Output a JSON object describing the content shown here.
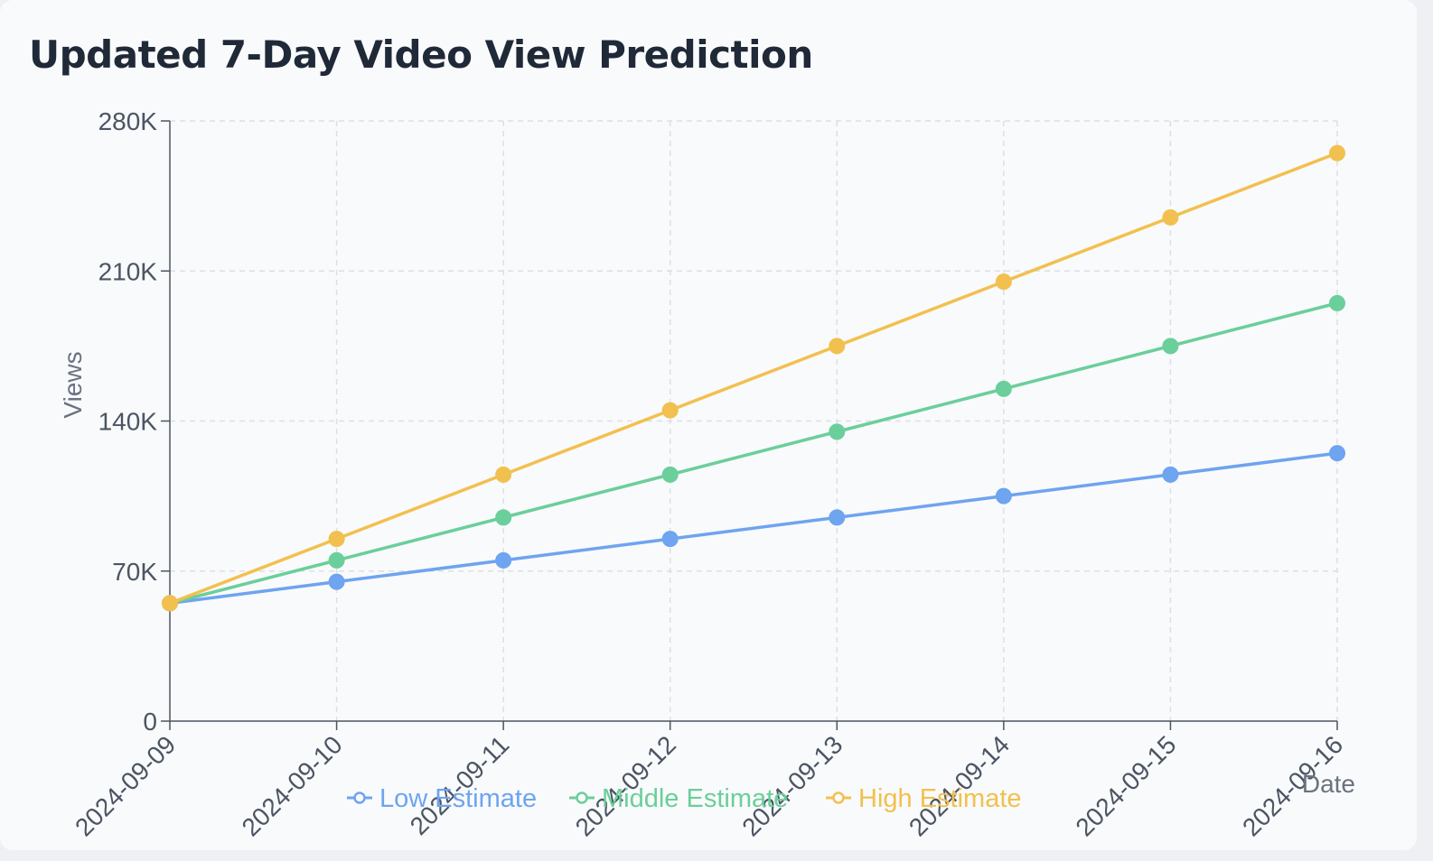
{
  "chart_data": {
    "type": "line",
    "title": "Updated 7-Day Video View Prediction",
    "xlabel": "Date",
    "ylabel": "Views",
    "categories": [
      "2024-09-09",
      "2024-09-10",
      "2024-09-11",
      "2024-09-12",
      "2024-09-13",
      "2024-09-14",
      "2024-09-15",
      "2024-09-16"
    ],
    "ylim": [
      0,
      280000
    ],
    "yticks": [
      0,
      70000,
      140000,
      210000,
      280000
    ],
    "ytick_labels": [
      "0",
      "70K",
      "140K",
      "210K",
      "280K"
    ],
    "grid": true,
    "legend_position": "bottom",
    "series": [
      {
        "name": "Low Estimate",
        "color": "#6ea4f0",
        "values": [
          55000,
          65000,
          75000,
          85000,
          95000,
          105000,
          115000,
          125000
        ]
      },
      {
        "name": "Middle Estimate",
        "color": "#6acf9b",
        "values": [
          55000,
          75000,
          95000,
          115000,
          135000,
          155000,
          175000,
          195000
        ]
      },
      {
        "name": "High Estimate",
        "color": "#f2c04f",
        "values": [
          55000,
          85000,
          115000,
          145000,
          175000,
          205000,
          235000,
          265000
        ]
      }
    ]
  }
}
